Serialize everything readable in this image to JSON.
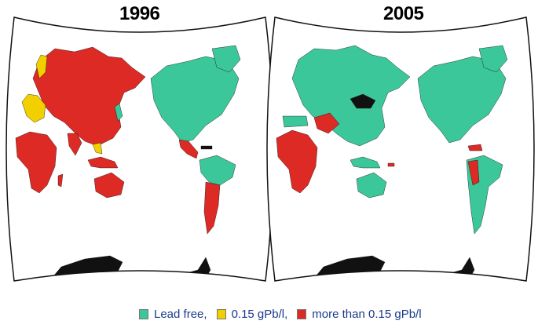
{
  "panels": [
    {
      "title": "1996"
    },
    {
      "title": "2005"
    }
  ],
  "legend": [
    {
      "label": "Lead free,",
      "color": "#3cc79a"
    },
    {
      "label": "0.15 gPb/l,",
      "color": "#f2d000"
    },
    {
      "label": "more than 0.15 gPb/l",
      "color": "#dd2a24"
    }
  ],
  "colors": {
    "lead_free": "#3cc79a",
    "low": "#f2d000",
    "high": "#dd2a24",
    "no_data": "#111111",
    "ocean": "#ffffff",
    "border": "#111111"
  }
}
